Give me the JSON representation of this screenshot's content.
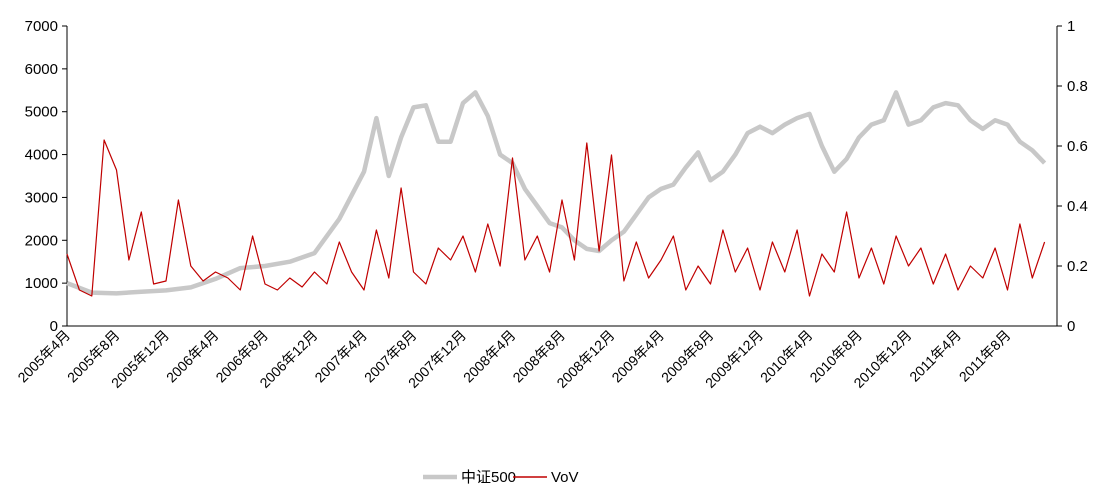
{
  "chart_data": {
    "type": "line",
    "title": "",
    "xlabel": "",
    "ylabel": "",
    "x_range": [
      "2005-04",
      "2011-12"
    ],
    "x_tick_labels": [
      "2005年4月",
      "2005年8月",
      "2005年12月",
      "2006年4月",
      "2006年8月",
      "2006年12月",
      "2007年4月",
      "2007年8月",
      "2007年12月",
      "2008年4月",
      "2008年8月",
      "2008年12月",
      "2009年4月",
      "2009年8月",
      "2009年12月",
      "2010年4月",
      "2010年8月",
      "2010年12月",
      "2011年4月",
      "2011年8月"
    ],
    "y_left": {
      "min": 0,
      "max": 7000,
      "ticks": [
        "0",
        "1000",
        "2000",
        "3000",
        "4000",
        "5000",
        "6000",
        "7000"
      ]
    },
    "y_right": {
      "min": 0,
      "max": 1,
      "ticks": [
        "0",
        "0.2",
        "0.4",
        "0.6",
        "0.8",
        "1"
      ]
    },
    "grid": false,
    "legend_position": "bottom",
    "series": [
      {
        "name": "中证500",
        "axis": "left",
        "color": "#c8c8c8",
        "points": [
          [
            "2005-04",
            1000
          ],
          [
            "2005-06",
            780
          ],
          [
            "2005-08",
            760
          ],
          [
            "2005-10",
            800
          ],
          [
            "2005-12",
            830
          ],
          [
            "2006-02",
            900
          ],
          [
            "2006-04",
            1100
          ],
          [
            "2006-06",
            1350
          ],
          [
            "2006-08",
            1400
          ],
          [
            "2006-10",
            1500
          ],
          [
            "2006-12",
            1700
          ],
          [
            "2007-02",
            2500
          ],
          [
            "2007-04",
            3600
          ],
          [
            "2007-05",
            4850
          ],
          [
            "2007-06",
            3500
          ],
          [
            "2007-07",
            4400
          ],
          [
            "2007-08",
            5100
          ],
          [
            "2007-09",
            5150
          ],
          [
            "2007-10",
            4300
          ],
          [
            "2007-11",
            4300
          ],
          [
            "2007-12",
            5200
          ],
          [
            "2008-01",
            5450
          ],
          [
            "2008-02",
            4900
          ],
          [
            "2008-03",
            4000
          ],
          [
            "2008-04",
            3800
          ],
          [
            "2008-05",
            3200
          ],
          [
            "2008-06",
            2800
          ],
          [
            "2008-07",
            2400
          ],
          [
            "2008-08",
            2300
          ],
          [
            "2008-09",
            2000
          ],
          [
            "2008-10",
            1800
          ],
          [
            "2008-11",
            1750
          ],
          [
            "2008-12",
            2000
          ],
          [
            "2009-01",
            2200
          ],
          [
            "2009-02",
            2600
          ],
          [
            "2009-03",
            3000
          ],
          [
            "2009-04",
            3200
          ],
          [
            "2009-05",
            3300
          ],
          [
            "2009-06",
            3700
          ],
          [
            "2009-07",
            4050
          ],
          [
            "2009-08",
            3400
          ],
          [
            "2009-09",
            3600
          ],
          [
            "2009-10",
            4000
          ],
          [
            "2009-11",
            4500
          ],
          [
            "2009-12",
            4650
          ],
          [
            "2010-01",
            4500
          ],
          [
            "2010-02",
            4700
          ],
          [
            "2010-03",
            4850
          ],
          [
            "2010-04",
            4950
          ],
          [
            "2010-05",
            4200
          ],
          [
            "2010-06",
            3600
          ],
          [
            "2010-07",
            3900
          ],
          [
            "2010-08",
            4400
          ],
          [
            "2010-09",
            4700
          ],
          [
            "2010-10",
            4800
          ],
          [
            "2010-11",
            5450
          ],
          [
            "2010-12",
            4700
          ],
          [
            "2011-01",
            4800
          ],
          [
            "2011-02",
            5100
          ],
          [
            "2011-03",
            5200
          ],
          [
            "2011-04",
            5150
          ],
          [
            "2011-05",
            4800
          ],
          [
            "2011-06",
            4600
          ],
          [
            "2011-07",
            4800
          ],
          [
            "2011-08",
            4700
          ],
          [
            "2011-09",
            4300
          ],
          [
            "2011-10",
            4100
          ],
          [
            "2011-11",
            3800
          ]
        ]
      },
      {
        "name": "VoV",
        "axis": "right",
        "color": "#c00000",
        "points": [
          [
            "2005-04",
            0.24
          ],
          [
            "2005-05",
            0.12
          ],
          [
            "2005-06",
            0.1
          ],
          [
            "2005-07",
            0.62
          ],
          [
            "2005-08",
            0.52
          ],
          [
            "2005-09",
            0.22
          ],
          [
            "2005-10",
            0.38
          ],
          [
            "2005-11",
            0.14
          ],
          [
            "2005-12",
            0.15
          ],
          [
            "2006-01",
            0.42
          ],
          [
            "2006-02",
            0.2
          ],
          [
            "2006-03",
            0.15
          ],
          [
            "2006-04",
            0.18
          ],
          [
            "2006-05",
            0.16
          ],
          [
            "2006-06",
            0.12
          ],
          [
            "2006-07",
            0.3
          ],
          [
            "2006-08",
            0.14
          ],
          [
            "2006-09",
            0.12
          ],
          [
            "2006-10",
            0.16
          ],
          [
            "2006-11",
            0.13
          ],
          [
            "2006-12",
            0.18
          ],
          [
            "2007-01",
            0.14
          ],
          [
            "2007-02",
            0.28
          ],
          [
            "2007-03",
            0.18
          ],
          [
            "2007-04",
            0.12
          ],
          [
            "2007-05",
            0.32
          ],
          [
            "2007-06",
            0.16
          ],
          [
            "2007-07",
            0.46
          ],
          [
            "2007-08",
            0.18
          ],
          [
            "2007-09",
            0.14
          ],
          [
            "2007-10",
            0.26
          ],
          [
            "2007-11",
            0.22
          ],
          [
            "2007-12",
            0.3
          ],
          [
            "2008-01",
            0.18
          ],
          [
            "2008-02",
            0.34
          ],
          [
            "2008-03",
            0.2
          ],
          [
            "2008-04",
            0.56
          ],
          [
            "2008-05",
            0.22
          ],
          [
            "2008-06",
            0.3
          ],
          [
            "2008-07",
            0.18
          ],
          [
            "2008-08",
            0.42
          ],
          [
            "2008-09",
            0.22
          ],
          [
            "2008-10",
            0.61
          ],
          [
            "2008-11",
            0.25
          ],
          [
            "2008-12",
            0.57
          ],
          [
            "2009-01",
            0.15
          ],
          [
            "2009-02",
            0.28
          ],
          [
            "2009-03",
            0.16
          ],
          [
            "2009-04",
            0.22
          ],
          [
            "2009-05",
            0.3
          ],
          [
            "2009-06",
            0.12
          ],
          [
            "2009-07",
            0.2
          ],
          [
            "2009-08",
            0.14
          ],
          [
            "2009-09",
            0.32
          ],
          [
            "2009-10",
            0.18
          ],
          [
            "2009-11",
            0.26
          ],
          [
            "2009-12",
            0.12
          ],
          [
            "2010-01",
            0.28
          ],
          [
            "2010-02",
            0.18
          ],
          [
            "2010-03",
            0.32
          ],
          [
            "2010-04",
            0.1
          ],
          [
            "2010-05",
            0.24
          ],
          [
            "2010-06",
            0.18
          ],
          [
            "2010-07",
            0.38
          ],
          [
            "2010-08",
            0.16
          ],
          [
            "2010-09",
            0.26
          ],
          [
            "2010-10",
            0.14
          ],
          [
            "2010-11",
            0.3
          ],
          [
            "2010-12",
            0.2
          ],
          [
            "2011-01",
            0.26
          ],
          [
            "2011-02",
            0.14
          ],
          [
            "2011-03",
            0.24
          ],
          [
            "2011-04",
            0.12
          ],
          [
            "2011-05",
            0.2
          ],
          [
            "2011-06",
            0.16
          ],
          [
            "2011-07",
            0.26
          ],
          [
            "2011-08",
            0.12
          ],
          [
            "2011-09",
            0.34
          ],
          [
            "2011-10",
            0.16
          ],
          [
            "2011-11",
            0.28
          ]
        ]
      }
    ]
  }
}
